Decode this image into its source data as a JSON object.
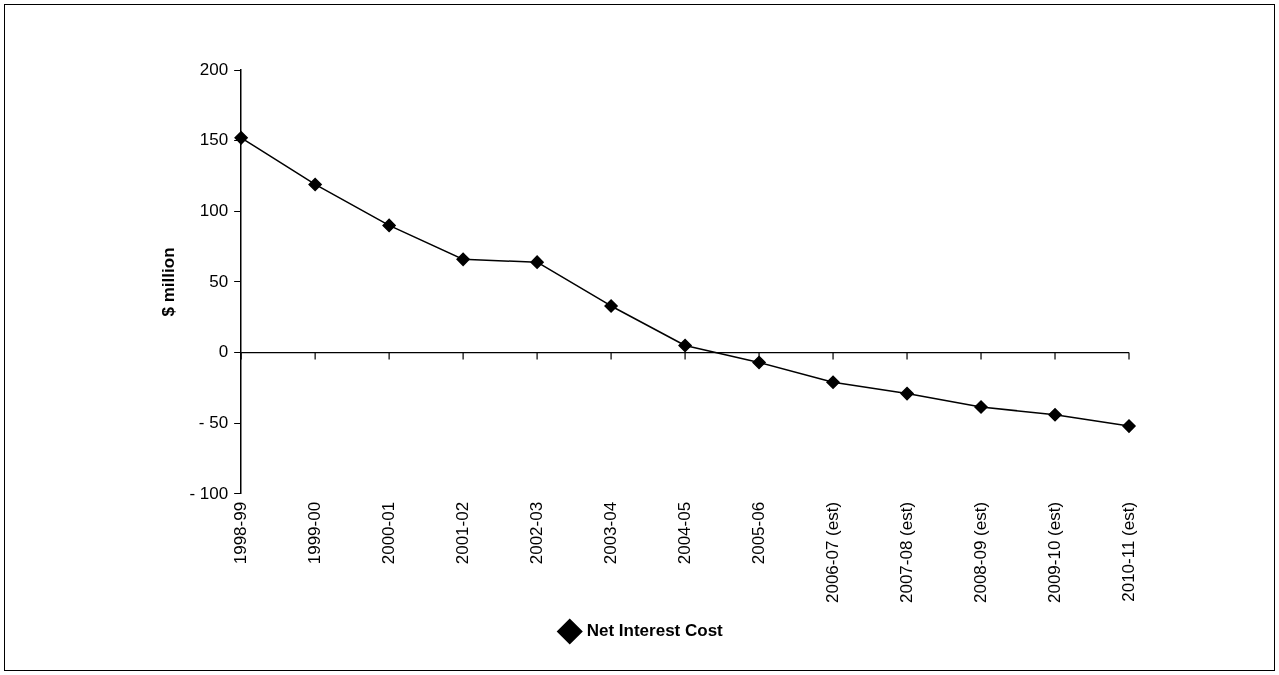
{
  "chart_data": {
    "type": "line",
    "categories": [
      "1998-99",
      "1999-00",
      "2000-01",
      "2001-02",
      "2002-03",
      "2003-04",
      "2004-05",
      "2005-06",
      "2006-07 (est)",
      "2007-08 (est)",
      "2008-09 (est)",
      "2009-10 (est)",
      "2010-11 (est)"
    ],
    "series": [
      {
        "name": "Net Interest Cost",
        "color": "#000000",
        "values": [
          152,
          119,
          90,
          66,
          64,
          33,
          5,
          -7,
          -21,
          -29,
          -38.5,
          -44,
          -52
        ]
      }
    ],
    "ylabel": "$ million",
    "ylim": [
      -100,
      200
    ],
    "yticks": [
      {
        "value": -100,
        "label": "- 100"
      },
      {
        "value": -50,
        "label": "- 50"
      },
      0,
      50,
      100,
      150,
      200
    ],
    "marker": "diamond",
    "line_style": "solid",
    "legend": "bottom"
  }
}
